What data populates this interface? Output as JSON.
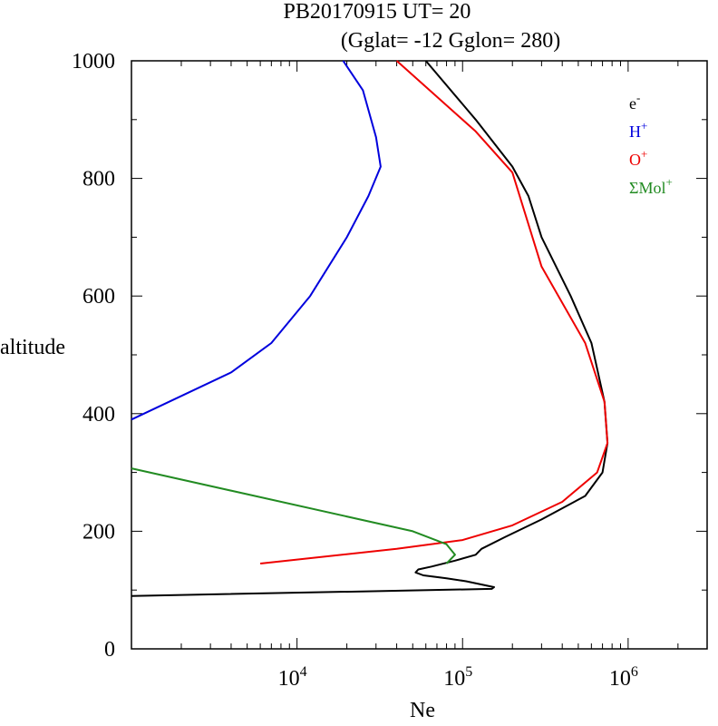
{
  "chart_data": {
    "type": "line",
    "title": "PB20170915   UT=  20",
    "subtitle": "(Gglat= -12   Gglon=  280)",
    "xlabel": "Ne",
    "ylabel": "altitude",
    "x_scale": "log",
    "xlim": [
      1000,
      3000000
    ],
    "ylim": [
      0,
      1000
    ],
    "x_ticks": [
      {
        "value": 10000,
        "base": "10",
        "exp": "4"
      },
      {
        "value": 100000,
        "base": "10",
        "exp": "5"
      },
      {
        "value": 1000000,
        "base": "10",
        "exp": "6"
      }
    ],
    "y_ticks": [
      0,
      200,
      400,
      600,
      800,
      1000
    ],
    "grid": false,
    "legend_position": "top-right",
    "series": [
      {
        "name": "e-",
        "label_base": "e",
        "label_sup": "-",
        "color": "#000000",
        "points": [
          [
            1000,
            90
          ],
          [
            150000,
            102
          ],
          [
            155000,
            105
          ],
          [
            105000,
            115
          ],
          [
            80000,
            120
          ],
          [
            58000,
            125
          ],
          [
            52000,
            130
          ],
          [
            54000,
            135
          ],
          [
            65000,
            140
          ],
          [
            90000,
            150
          ],
          [
            120000,
            160
          ],
          [
            130000,
            170
          ],
          [
            180000,
            190
          ],
          [
            300000,
            220
          ],
          [
            550000,
            260
          ],
          [
            700000,
            300
          ],
          [
            750000,
            350
          ],
          [
            720000,
            420
          ],
          [
            600000,
            520
          ],
          [
            450000,
            600
          ],
          [
            300000,
            700
          ],
          [
            250000,
            770
          ],
          [
            200000,
            820
          ],
          [
            120000,
            900
          ],
          [
            60000,
            1000
          ]
        ]
      },
      {
        "name": "H+",
        "label_base": "H",
        "label_sup": "+",
        "color": "#0000dd",
        "points": [
          [
            1000,
            390
          ],
          [
            4000,
            470
          ],
          [
            7000,
            520
          ],
          [
            12000,
            600
          ],
          [
            20000,
            700
          ],
          [
            27000,
            770
          ],
          [
            32000,
            820
          ],
          [
            30000,
            870
          ],
          [
            25000,
            950
          ],
          [
            19000,
            1000
          ]
        ]
      },
      {
        "name": "O+",
        "label_base": "O",
        "label_sup": "+",
        "color": "#ee0000",
        "points": [
          [
            6000,
            145
          ],
          [
            40000,
            170
          ],
          [
            100000,
            185
          ],
          [
            200000,
            210
          ],
          [
            400000,
            250
          ],
          [
            650000,
            300
          ],
          [
            750000,
            350
          ],
          [
            720000,
            420
          ],
          [
            550000,
            520
          ],
          [
            300000,
            650
          ],
          [
            200000,
            810
          ],
          [
            120000,
            880
          ],
          [
            40000,
            1000
          ]
        ]
      },
      {
        "name": "ΣMol+",
        "label_base": "ΣMol",
        "label_sup": "+",
        "color": "#228b22",
        "points": [
          [
            1000,
            307
          ],
          [
            50000,
            200
          ],
          [
            80000,
            178
          ],
          [
            90000,
            160
          ],
          [
            80000,
            145
          ]
        ]
      }
    ]
  }
}
